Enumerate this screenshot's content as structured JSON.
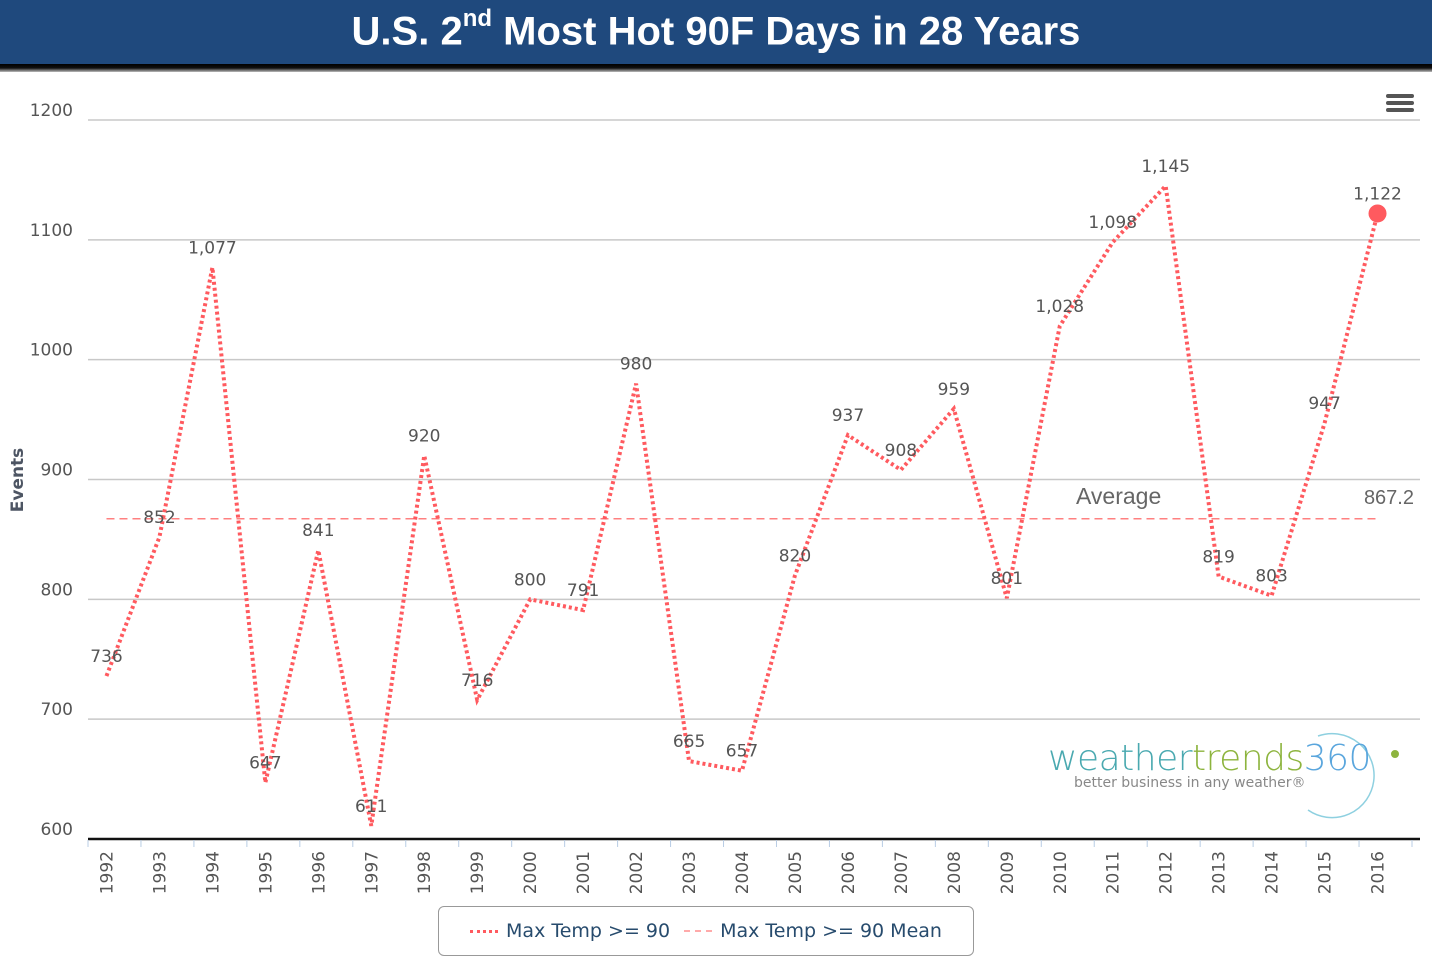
{
  "header": {
    "title_prefix": "U.S. 2",
    "title_sup": "nd",
    "title_suffix": " Most Hot 90F Days in 28 Years",
    "background_color": "#1f497d"
  },
  "menu": {
    "icon": "hamburger-menu-icon"
  },
  "logo": {
    "part1": "weather",
    "part2": "trends",
    "part3": "360",
    "tagline": "better business in any weather®",
    "colors": {
      "part1": "#4aa9b0",
      "part2": "#8db43e",
      "part3": "#5aa6dd"
    }
  },
  "chart_data": {
    "type": "line",
    "title": "U.S. 2nd Most Hot 90F Days in 28 Years",
    "xlabel": "",
    "ylabel": "Events",
    "ylim": [
      600,
      1200
    ],
    "yticks": [
      "600",
      "700",
      "800",
      "900",
      "1000",
      "1100",
      "1200"
    ],
    "ytick_values": [
      600,
      700,
      800,
      900,
      1000,
      1100,
      1200
    ],
    "grid": true,
    "categories": [
      "1992",
      "1993",
      "1994",
      "1995",
      "1996",
      "1997",
      "1998",
      "1999",
      "2000",
      "2001",
      "2002",
      "2003",
      "2004",
      "2005",
      "2006",
      "2007",
      "2008",
      "2009",
      "2010",
      "2011",
      "2012",
      "2013",
      "2014",
      "2015",
      "2016"
    ],
    "series": [
      {
        "name": "Max Temp >= 90",
        "style": "dotted",
        "color": "#ff5a5f",
        "values": [
          736,
          852,
          1077,
          647,
          841,
          611,
          920,
          716,
          800,
          791,
          980,
          665,
          657,
          820,
          937,
          908,
          959,
          801,
          1028,
          1098,
          1145,
          819,
          803,
          947,
          1122
        ],
        "labels": [
          "736",
          "852",
          "1,077",
          "647",
          "841",
          "611",
          "920",
          "716",
          "800",
          "791",
          "980",
          "665",
          "657",
          "820",
          "937",
          "908",
          "959",
          "801",
          "1,028",
          "1,098",
          "1,145",
          "819",
          "803",
          "947",
          "1,122"
        ],
        "highlight_last": true
      },
      {
        "name": "Max Temp >= 90 Mean",
        "style": "dashed",
        "color": "#ff8080",
        "value": 867.2
      }
    ],
    "annotations": {
      "average_label": "Average",
      "average_value": "867.2"
    },
    "legend": {
      "placement": "bottom-center",
      "items": [
        "Max Temp >= 90",
        "Max Temp >= 90 Mean"
      ]
    }
  }
}
